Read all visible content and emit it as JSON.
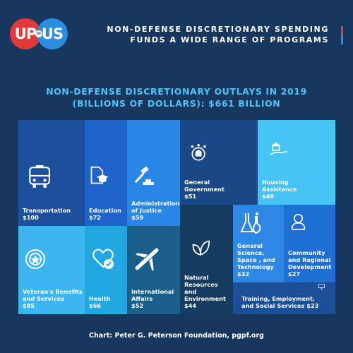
{
  "header": {
    "logo_left": "UP",
    "logo_mid": "to",
    "logo_right": "US",
    "headline_line1": "NON-DEFENSE DISCRETIONARY SPENDING",
    "headline_line2": "FUNDS A WIDE RANGE OF PROGRAMS"
  },
  "chart_data": {
    "type": "treemap",
    "title_line1": "NON-DEFENSE DISCRETIONARY OUTLAYS IN 2019",
    "title_line2": "(BILLIONS OF DOLLARS): $661 BILLION",
    "unit": "billions of dollars",
    "total": 661,
    "items": [
      {
        "name": "Transportation",
        "value": 100,
        "value_label": "$100",
        "color": "#1c4f9c",
        "icon": "bus-icon"
      },
      {
        "name": "Education",
        "value": 72,
        "value_label": "$72",
        "color": "#1e63c8",
        "icon": "graduation-cap-icon"
      },
      {
        "name": "Administration\nof Justice",
        "value": 59,
        "value_label": "$59",
        "color": "#2a86e6",
        "icon": "gavel-icon"
      },
      {
        "name": "General\nGovernment",
        "value": 51,
        "value_label": "$51",
        "color": "#1a4786",
        "icon": "government-seal-icon"
      },
      {
        "name": "Housing\nAssistance",
        "value": 49,
        "value_label": "$49",
        "color": "#45c4f5",
        "icon": "hand-house-icon"
      },
      {
        "name": "Veteran's Benefits\nand Services",
        "value": 85,
        "value_label": "$85",
        "color": "#3db6ef",
        "icon": "medal-icon"
      },
      {
        "name": "Health",
        "value": 66,
        "value_label": "$66",
        "color": "#23a7e0",
        "icon": "heart-check-icon"
      },
      {
        "name": "International\nAffairs",
        "value": 52,
        "value_label": "$52",
        "color": "#1a5f8c",
        "icon": "airplane-icon"
      },
      {
        "name": "Natural\nResources\nand\nEnvironment",
        "value": 44,
        "value_label": "$44",
        "color": "#163b61",
        "icon": "leaves-icon"
      },
      {
        "name": "General\nScience,\nSpace , and\nTechnology",
        "value": 32,
        "value_label": "$32",
        "color": "#2e86e5",
        "icon": "flasks-icon"
      },
      {
        "name": "Community\nand Regional\nDevelopment",
        "value": 27,
        "value_label": "$27",
        "color": "#1e6fd4",
        "icon": "person-icon"
      },
      {
        "name": "Training, Employment,\nand Social Services",
        "value": 23,
        "value_label": "$23",
        "color": "#1b4f98",
        "icon": "computer-icon"
      }
    ]
  },
  "source": "Chart: Peter G. Peterson Foundation, pgpf.org",
  "colors": {
    "accent_red": "#e23a3a",
    "accent_blue": "#2c8ce0",
    "title": "#4fc3f7"
  }
}
